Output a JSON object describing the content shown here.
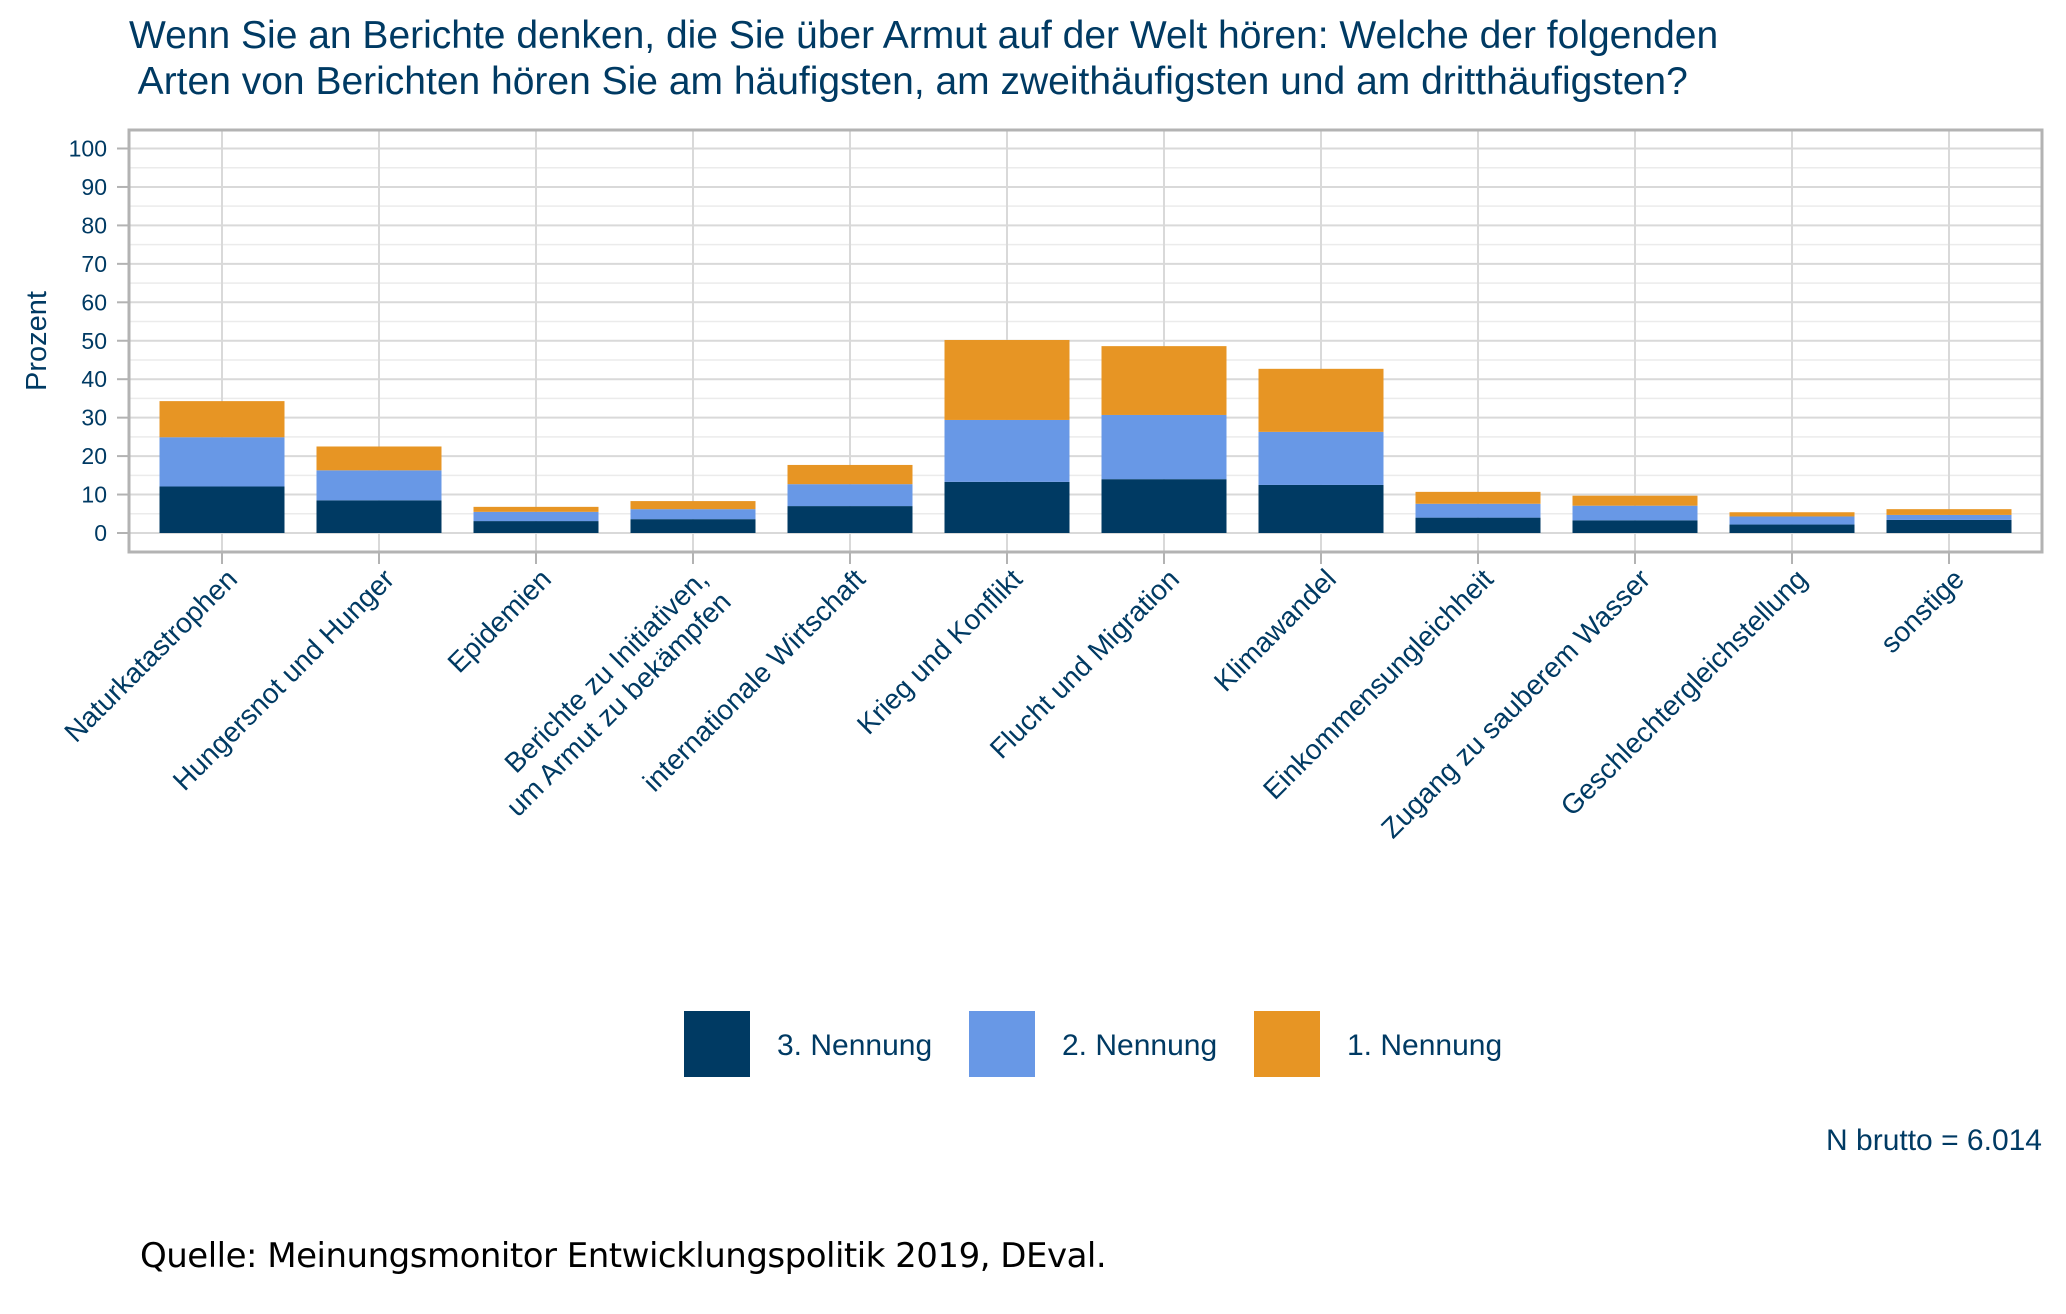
{
  "chart_data": {
    "type": "bar",
    "stacked": true,
    "title": "Wenn Sie an Berichte denken, die Sie über Armut auf der Welt hören: Welche der folgenden Arten von Berichten hören Sie am häufigsten, am zweithäufigsten und am dritthäufigsten?",
    "title_lines": [
      "Wenn Sie an Berichte denken, die Sie über Armut auf der Welt hören: Welche der folgenden",
      " Arten von Berichten hören Sie am häufigsten, am zweithäufigsten und am dritthäufigsten?"
    ],
    "xlabel": "",
    "ylabel": "Prozent",
    "ylim": [
      0,
      100
    ],
    "yticks": [
      0,
      10,
      20,
      30,
      40,
      50,
      60,
      70,
      80,
      90,
      100
    ],
    "grid": true,
    "categories": [
      [
        "Naturkatastrophen"
      ],
      [
        "Hungersnot und Hunger"
      ],
      [
        "Epidemien"
      ],
      [
        "Berichte zu Initiativen,",
        "um Armut zu bekämpfen"
      ],
      [
        "internationale Wirtschaft"
      ],
      [
        "Krieg und Konflikt"
      ],
      [
        "Flucht und Migration"
      ],
      [
        "Klimawandel"
      ],
      [
        "Einkommensungleichheit"
      ],
      [
        "Zugang zu sauberem Wasser"
      ],
      [
        "Geschlechtergleichstellung"
      ],
      [
        "sonstige"
      ]
    ],
    "series": [
      {
        "name": "3. Nennung",
        "color": "#003a63",
        "values": [
          12.1,
          8.5,
          3.1,
          3.6,
          7.0,
          13.3,
          14.0,
          12.5,
          4.0,
          3.3,
          2.2,
          3.4
        ]
      },
      {
        "name": "2. Nennung",
        "color": "#6898e6",
        "values": [
          12.8,
          7.8,
          2.4,
          2.6,
          5.7,
          16.1,
          16.7,
          13.8,
          3.6,
          3.8,
          2.1,
          1.3
        ]
      },
      {
        "name": "1. Nennung",
        "color": "#e79524",
        "values": [
          9.4,
          6.2,
          1.3,
          2.1,
          5.0,
          20.8,
          17.9,
          16.4,
          3.1,
          2.6,
          1.1,
          1.5
        ]
      }
    ],
    "legend_position": "bottom",
    "note": "N brutto = 6.014",
    "source": "Quelle: Meinungsmonitor Entwicklungspolitik 2019, DEval."
  },
  "colors": {
    "text": "#003a63",
    "frame": "#b3b3b3",
    "grid_major": "#d9d9d9",
    "grid_minor": "#ebebeb"
  }
}
